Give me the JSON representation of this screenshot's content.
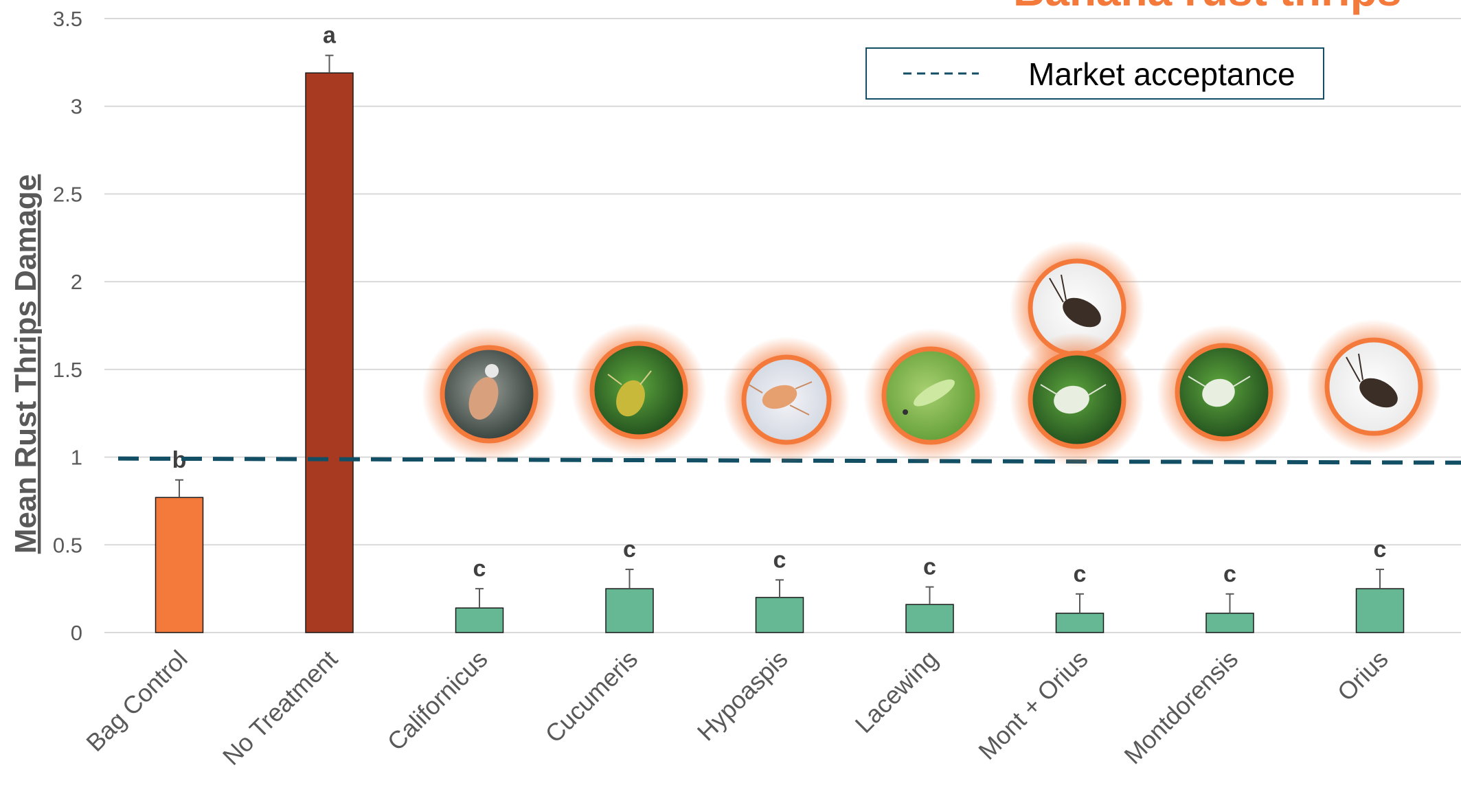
{
  "chart_data": {
    "type": "bar",
    "title": "Banana rust thrips",
    "ylabel": "Mean Rust Thrips Damage",
    "xlabel": "",
    "ylim": [
      0,
      3.5
    ],
    "yticks": [
      "0",
      "0.5",
      "1",
      "1.5",
      "2",
      "2.5",
      "3",
      "3.5"
    ],
    "categories": [
      "Bag Control",
      "No Treatment",
      "Californicus",
      "Cucumeris",
      "Hypoaspis",
      "Lacewing",
      "Mont + Orius",
      "Montdorensis",
      "Orius"
    ],
    "values": [
      0.77,
      3.19,
      0.14,
      0.25,
      0.2,
      0.16,
      0.11,
      0.11,
      0.25
    ],
    "errors": [
      0.1,
      0.1,
      0.11,
      0.11,
      0.1,
      0.1,
      0.11,
      0.11,
      0.11
    ],
    "significance": [
      "b",
      "a",
      "c",
      "c",
      "c",
      "c",
      "c",
      "c",
      "c"
    ],
    "bar_colors": [
      "#F47A3C",
      "#A93A22",
      "#66B894",
      "#66B894",
      "#66B894",
      "#66B894",
      "#66B894",
      "#66B894",
      "#66B894"
    ],
    "reference_line": {
      "label": "Market acceptance",
      "value": 0.98,
      "color": "#134F64",
      "style": "dashed"
    },
    "grid": true,
    "legend_position": "top-right",
    "insect_images": [
      "mite-icon",
      "mite-icon",
      "mite-icon",
      "lacewing-larva-icon",
      "mite-icon",
      "mite-icon",
      "pirate-bug-icon"
    ]
  }
}
